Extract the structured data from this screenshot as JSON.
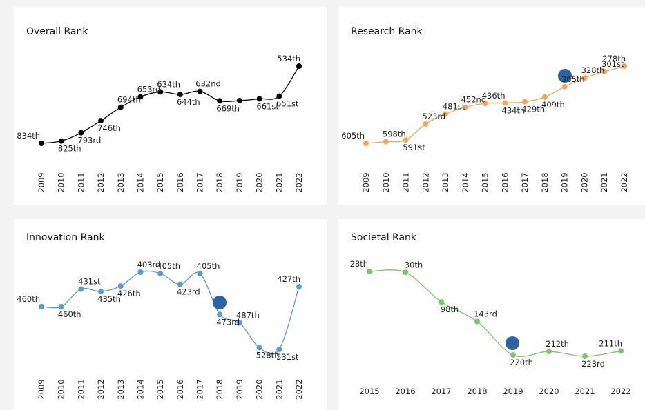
{
  "chart_data": [
    {
      "type": "line",
      "title": "Overall Rank",
      "color": "#000000",
      "x": [
        2009,
        2010,
        2011,
        2012,
        2013,
        2014,
        2015,
        2016,
        2017,
        2018,
        2019,
        2020,
        2021,
        2022
      ],
      "values": [
        834,
        825,
        793,
        746,
        694,
        653,
        634,
        644,
        632,
        669,
        668,
        661,
        651,
        534
      ],
      "value_labels": [
        "834th",
        "825th",
        "793rd",
        "746th",
        "694th",
        "653rd",
        "634th",
        "644th",
        "632nd",
        "669th",
        null,
        "661st",
        "651st",
        "534th"
      ]
    },
    {
      "type": "line",
      "title": "Research Rank",
      "color": "#f5a55a",
      "x": [
        2009,
        2010,
        2011,
        2012,
        2013,
        2014,
        2015,
        2016,
        2017,
        2018,
        2019,
        2020,
        2021,
        2022
      ],
      "values": [
        605,
        598,
        591,
        523,
        481,
        452,
        436,
        434,
        429,
        409,
        365,
        328,
        301,
        278
      ],
      "value_labels": [
        "605th",
        "598th",
        "591st",
        "523rd",
        "481st",
        "452nd",
        "436th",
        "434th",
        "429th",
        "409th",
        "365th",
        "328th",
        "301st",
        "278th"
      ]
    },
    {
      "type": "line",
      "title": "Innovation Rank",
      "color": "#5b9bd5",
      "x": [
        2009,
        2010,
        2011,
        2012,
        2013,
        2014,
        2015,
        2016,
        2017,
        2018,
        2019,
        2020,
        2021,
        2022
      ],
      "values": [
        460,
        460,
        431,
        435,
        426,
        403,
        405,
        423,
        405,
        473,
        487,
        528,
        531,
        427
      ],
      "value_labels": [
        "460th",
        "460th",
        "431st",
        "435th",
        "426th",
        "403rd",
        "405th",
        "423rd",
        "405th",
        "473rd",
        "487th",
        "528th",
        "531st",
        "427th"
      ]
    },
    {
      "type": "line",
      "title": "Societal Rank",
      "color": "#7cc36b",
      "x": [
        2015,
        2016,
        2017,
        2018,
        2019,
        2020,
        2021,
        2022
      ],
      "values": [
        28,
        30,
        98,
        143,
        220,
        212,
        223,
        211
      ],
      "value_labels": [
        "28th",
        "30th",
        "98th",
        "143rd",
        "220th",
        "212th",
        "223rd",
        "211th"
      ]
    }
  ]
}
